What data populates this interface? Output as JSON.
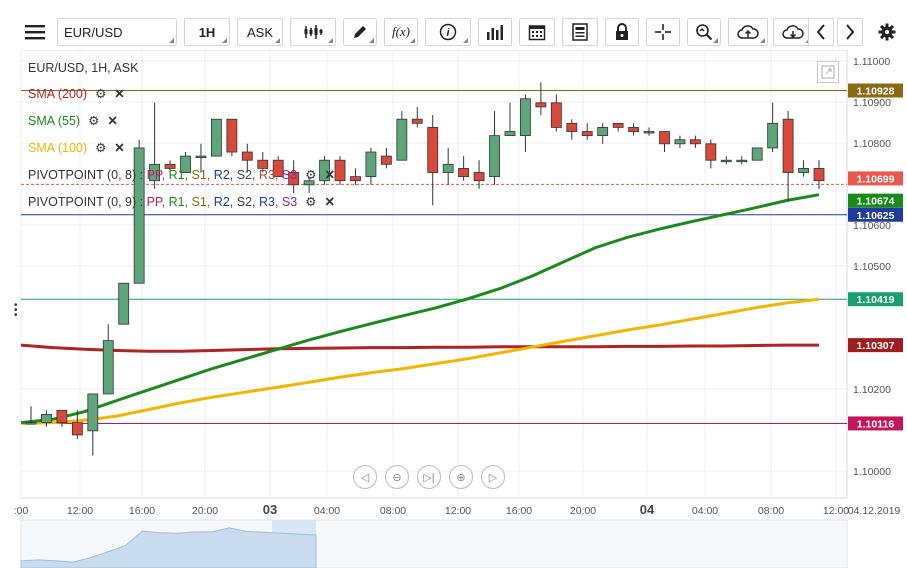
{
  "toolbar": {
    "symbol": "EUR/USD",
    "timeframe": "1H",
    "price_type": "ASK",
    "fx_label": "f(x)",
    "icons": [
      "menu-icon",
      "candles-icon",
      "pencil-icon",
      "fx-icon",
      "info-icon",
      "volume-icon",
      "calendar-icon",
      "news-icon",
      "lock-icon",
      "crosshair-icon",
      "zoom-icon",
      "upload-icon",
      "download-icon",
      "prev-icon",
      "next-icon",
      "gear-icon"
    ]
  },
  "chart_header": "EUR/USD, 1H, ASK",
  "indicators": [
    {
      "label": "SMA (200)",
      "color": "#b22222"
    },
    {
      "label": "SMA (55)",
      "color": "#1a8a1a"
    },
    {
      "label": "SMA (100)",
      "color": "#f2b500"
    }
  ],
  "pivots": [
    {
      "label": "PIVOTPOINT (0, 8)",
      "sep": ":",
      "items": [
        "PP,",
        "R1,",
        "S1,",
        "R2,",
        "S2,",
        "R3,",
        "S3"
      ]
    },
    {
      "label": "PIVOTPOINT (0, 9)",
      "sep": ":",
      "items": [
        "PP,",
        "R1,",
        "S1,",
        "R2,",
        "S2,",
        "R3,",
        "S3"
      ]
    }
  ],
  "pivot_colors": [
    "#c2185b",
    "#1a8a1a",
    "#8a6d00",
    "#1f3c9c",
    "#444444",
    "#555555",
    "#8e24aa"
  ],
  "colors": {
    "up": "#5ea57a",
    "down": "#d9493a",
    "sma200": "#b22222",
    "sma55": "#1a8a1a",
    "sma100": "#f2b500"
  },
  "chart_data": {
    "type": "candlestick",
    "y_ticks": [
      "1.11000",
      "1.10900",
      "1.10800",
      "1.10600",
      "1.10500",
      "1.10200",
      "1.10000"
    ],
    "ylim": [
      1.0993,
      1.1109
    ],
    "x_ticks": [
      ":00",
      "12:00",
      "16:00",
      "20:00",
      "03",
      "04:00",
      "08:00",
      "12:00",
      "16:00",
      "20:00",
      "04",
      "04:00",
      "08:00",
      "12:00"
    ],
    "date_label": "04.12.2019",
    "price_tags": [
      {
        "value": "1.10928",
        "bg": "#8b6914"
      },
      {
        "value": "1.10699",
        "bg": "#e8584c"
      },
      {
        "value": "1.10674",
        "bg": "#1a8a1a"
      },
      {
        "value": "1.10625",
        "bg": "#1f3c9c"
      },
      {
        "value": "1.10419",
        "bg": "#1aa06e"
      },
      {
        "value": "1.10307",
        "bg": "#a11d1d"
      },
      {
        "value": "1.10116",
        "bg": "#c2185b"
      }
    ],
    "horizontal_lines": [
      1.10928,
      1.10699,
      1.10625,
      1.10419,
      1.10116
    ],
    "candles": [
      {
        "o": 1.10118,
        "h": 1.10158,
        "l": 1.10118,
        "c": 1.10118
      },
      {
        "o": 1.10118,
        "h": 1.10148,
        "l": 1.10108,
        "c": 1.10138
      },
      {
        "o": 1.10148,
        "h": 1.10148,
        "l": 1.10108,
        "c": 1.10118
      },
      {
        "o": 1.10118,
        "h": 1.10148,
        "l": 1.10078,
        "c": 1.10088
      },
      {
        "o": 1.10098,
        "h": 1.10188,
        "l": 1.10038,
        "c": 1.10188
      },
      {
        "o": 1.10188,
        "h": 1.10358,
        "l": 1.10188,
        "c": 1.10318
      },
      {
        "o": 1.10358,
        "h": 1.10458,
        "l": 1.10358,
        "c": 1.10458
      },
      {
        "o": 1.10458,
        "h": 1.10808,
        "l": 1.10458,
        "c": 1.10788
      },
      {
        "o": 1.10708,
        "h": 1.10898,
        "l": 1.10688,
        "c": 1.10748
      },
      {
        "o": 1.10748,
        "h": 1.10758,
        "l": 1.10728,
        "c": 1.10738
      },
      {
        "o": 1.10728,
        "h": 1.10778,
        "l": 1.10728,
        "c": 1.10768
      },
      {
        "o": 1.10768,
        "h": 1.10798,
        "l": 1.10728,
        "c": 1.10768
      },
      {
        "o": 1.10768,
        "h": 1.10858,
        "l": 1.10768,
        "c": 1.10858
      },
      {
        "o": 1.10858,
        "h": 1.10858,
        "l": 1.10768,
        "c": 1.10778
      },
      {
        "o": 1.10778,
        "h": 1.10798,
        "l": 1.10728,
        "c": 1.10758
      },
      {
        "o": 1.10758,
        "h": 1.10778,
        "l": 1.10728,
        "c": 1.10738
      },
      {
        "o": 1.10758,
        "h": 1.10768,
        "l": 1.10728,
        "c": 1.10718
      },
      {
        "o": 1.10728,
        "h": 1.10758,
        "l": 1.10678,
        "c": 1.10698
      },
      {
        "o": 1.10698,
        "h": 1.10718,
        "l": 1.10678,
        "c": 1.10708
      },
      {
        "o": 1.10708,
        "h": 1.10768,
        "l": 1.10698,
        "c": 1.10758
      },
      {
        "o": 1.10758,
        "h": 1.10768,
        "l": 1.10698,
        "c": 1.10708
      },
      {
        "o": 1.10718,
        "h": 1.10738,
        "l": 1.10698,
        "c": 1.10708
      },
      {
        "o": 1.10718,
        "h": 1.10788,
        "l": 1.10698,
        "c": 1.10778
      },
      {
        "o": 1.10768,
        "h": 1.10788,
        "l": 1.10738,
        "c": 1.10748
      },
      {
        "o": 1.10758,
        "h": 1.10878,
        "l": 1.10758,
        "c": 1.10858
      },
      {
        "o": 1.10858,
        "h": 1.10888,
        "l": 1.10838,
        "c": 1.10848
      },
      {
        "o": 1.10838,
        "h": 1.10868,
        "l": 1.10648,
        "c": 1.10728
      },
      {
        "o": 1.10728,
        "h": 1.10788,
        "l": 1.10698,
        "c": 1.10748
      },
      {
        "o": 1.10738,
        "h": 1.10768,
        "l": 1.10708,
        "c": 1.10718
      },
      {
        "o": 1.10728,
        "h": 1.10758,
        "l": 1.10688,
        "c": 1.10708
      },
      {
        "o": 1.10718,
        "h": 1.10878,
        "l": 1.10698,
        "c": 1.10818
      },
      {
        "o": 1.10818,
        "h": 1.10898,
        "l": 1.10818,
        "c": 1.10828
      },
      {
        "o": 1.10818,
        "h": 1.10918,
        "l": 1.10778,
        "c": 1.10908
      },
      {
        "o": 1.10898,
        "h": 1.10948,
        "l": 1.10868,
        "c": 1.10888
      },
      {
        "o": 1.10898,
        "h": 1.10918,
        "l": 1.10828,
        "c": 1.10838
      },
      {
        "o": 1.10848,
        "h": 1.10858,
        "l": 1.10808,
        "c": 1.10828
      },
      {
        "o": 1.10828,
        "h": 1.10848,
        "l": 1.10808,
        "c": 1.10818
      },
      {
        "o": 1.10818,
        "h": 1.10848,
        "l": 1.10798,
        "c": 1.10838
      },
      {
        "o": 1.10848,
        "h": 1.10848,
        "l": 1.10828,
        "c": 1.10838
      },
      {
        "o": 1.10838,
        "h": 1.10848,
        "l": 1.10818,
        "c": 1.10828
      },
      {
        "o": 1.10828,
        "h": 1.10838,
        "l": 1.10818,
        "c": 1.10828
      },
      {
        "o": 1.10828,
        "h": 1.10828,
        "l": 1.10778,
        "c": 1.10798
      },
      {
        "o": 1.10798,
        "h": 1.10818,
        "l": 1.10788,
        "c": 1.10808
      },
      {
        "o": 1.10808,
        "h": 1.10818,
        "l": 1.10788,
        "c": 1.10798
      },
      {
        "o": 1.10798,
        "h": 1.10808,
        "l": 1.10738,
        "c": 1.10758
      },
      {
        "o": 1.10758,
        "h": 1.10768,
        "l": 1.10748,
        "c": 1.10758
      },
      {
        "o": 1.10758,
        "h": 1.10768,
        "l": 1.10748,
        "c": 1.10758
      },
      {
        "o": 1.10758,
        "h": 1.10788,
        "l": 1.10758,
        "c": 1.10788
      },
      {
        "o": 1.10788,
        "h": 1.10898,
        "l": 1.10778,
        "c": 1.10848
      },
      {
        "o": 1.10858,
        "h": 1.10878,
        "l": 1.10658,
        "c": 1.10728
      },
      {
        "o": 1.10728,
        "h": 1.10758,
        "l": 1.10718,
        "c": 1.10738
      },
      {
        "o": 1.10738,
        "h": 1.10758,
        "l": 1.10688,
        "c": 1.10708
      }
    ],
    "sma200": [
      1.10307,
      1.10301,
      1.10297,
      1.10294,
      1.10292,
      1.10292,
      1.10294,
      1.10296,
      1.10298,
      1.10299,
      1.103,
      1.10301,
      1.10301,
      1.10302,
      1.10302,
      1.10303,
      1.10303,
      1.10303,
      1.10303,
      1.10304,
      1.10304,
      1.10305,
      1.10305,
      1.10306,
      1.10307,
      1.10307
    ],
    "sma55": [
      1.10118,
      1.10126,
      1.10145,
      1.10172,
      1.10198,
      1.10224,
      1.1025,
      1.10273,
      1.10296,
      1.10319,
      1.1034,
      1.1036,
      1.10379,
      1.10398,
      1.1042,
      1.10445,
      1.10475,
      1.1051,
      1.10545,
      1.1057,
      1.1059,
      1.10608,
      1.10625,
      1.10642,
      1.1066,
      1.10674
    ],
    "sma100": [
      1.10116,
      1.10118,
      1.10124,
      1.10134,
      1.1015,
      1.10166,
      1.1018,
      1.10192,
      1.10204,
      1.10216,
      1.10229,
      1.1024,
      1.1025,
      1.10262,
      1.10274,
      1.10288,
      1.10302,
      1.10316,
      1.1033,
      1.10344,
      1.10356,
      1.1037,
      1.10384,
      1.10398,
      1.1041,
      1.10419
    ]
  }
}
